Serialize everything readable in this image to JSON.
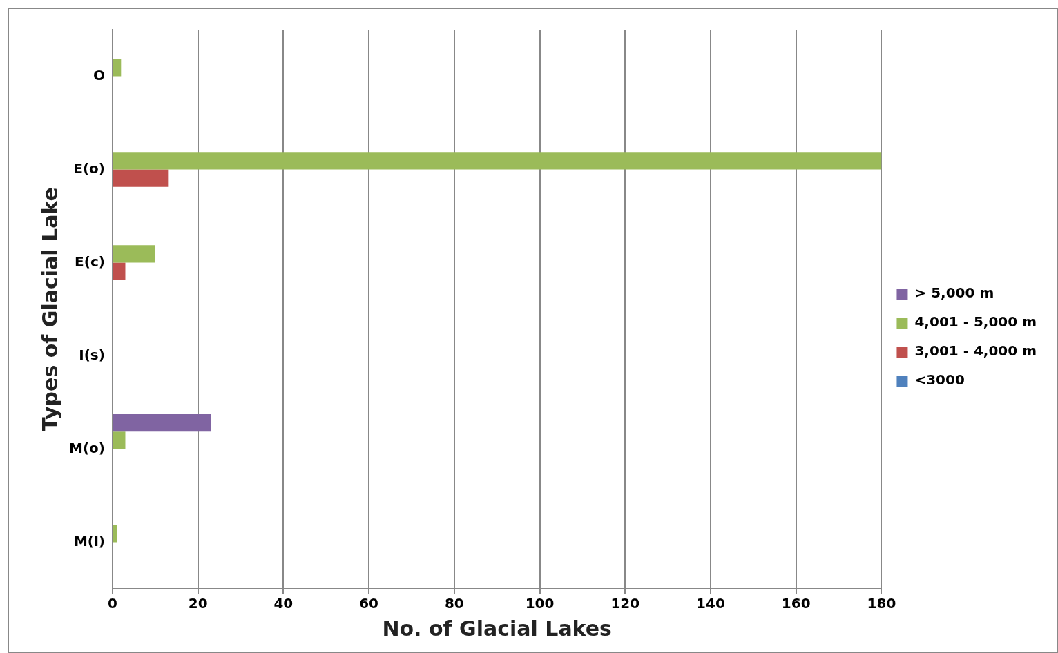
{
  "chart_data": {
    "type": "bar",
    "orientation": "horizontal",
    "xlabel": "No. of Glacial Lakes",
    "ylabel": "Types of Glacial Lake",
    "categories": [
      "O",
      "E(o)",
      "E(c)",
      "I(s)",
      "M(o)",
      "M(l)"
    ],
    "series": [
      {
        "name": "> 5,000 m",
        "color": "#8064a2",
        "values": [
          0,
          0,
          0,
          0,
          23,
          0
        ]
      },
      {
        "name": "4,001 - 5,000 m",
        "color": "#9bbb59",
        "values": [
          2,
          180,
          10,
          0,
          3,
          1
        ]
      },
      {
        "name": "3,001 - 4,000 m",
        "color": "#c0504d",
        "values": [
          0,
          13,
          3,
          0,
          0,
          0
        ]
      },
      {
        "name": "<3000",
        "color": "#4f81bd",
        "values": [
          0,
          0,
          0,
          0,
          0,
          0
        ]
      }
    ],
    "xlim": [
      0,
      180
    ],
    "xticks": [
      0,
      20,
      40,
      60,
      80,
      100,
      120,
      140,
      160,
      180
    ],
    "grid": "x",
    "legend": "right"
  }
}
